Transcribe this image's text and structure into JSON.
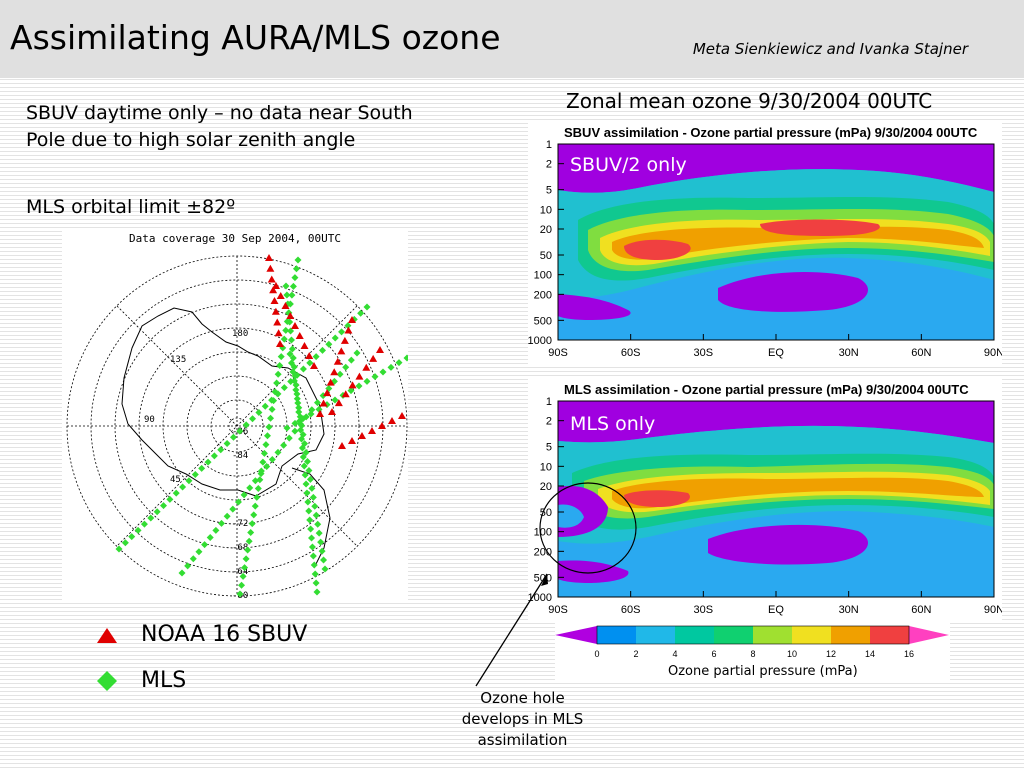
{
  "header": {
    "title": "Assimilating AURA/MLS ozone",
    "authors": "Meta Sienkiewicz and Ivanka Stajner"
  },
  "notes": {
    "sbuv_note": "SBUV daytime only – no data near South Pole due to high solar zenith angle",
    "mls_note": "MLS orbital limit ±82º"
  },
  "coverage_map": {
    "title": "Data coverage 30 Sep 2004, 00UTC",
    "lon_labels": [
      "180",
      "135",
      "90",
      "45"
    ],
    "lat_labels": [
      "-86",
      "-84",
      "-72",
      "-68",
      "-64",
      "-80"
    ]
  },
  "legend": {
    "sbuv_label": "NOAA 16 SBUV",
    "mls_label": "MLS",
    "sbuv_color": "#e00000",
    "mls_color": "#33dd33"
  },
  "zonal": {
    "heading": "Zonal mean ozone 9/30/2004 00UTC",
    "pressure_ticks": [
      "1",
      "2",
      "5",
      "10",
      "20",
      "50",
      "100",
      "200",
      "500",
      "1000"
    ],
    "lat_ticks": [
      "90S",
      "60S",
      "30S",
      "EQ",
      "30N",
      "60N",
      "90N"
    ],
    "panel_sbuv": {
      "plot_title": "SBUV assimilation - Ozone partial pressure (mPa) 9/30/2004 00UTC",
      "overlay": "SBUV/2 only"
    },
    "panel_mls": {
      "plot_title": "MLS assimilation - Ozone partial pressure (mPa) 9/30/2004 00UTC",
      "overlay": "MLS only"
    }
  },
  "colorbar": {
    "ticks": [
      "0",
      "2",
      "4",
      "6",
      "8",
      "10",
      "12",
      "14",
      "16"
    ],
    "colors": [
      "#b000e0",
      "#0090f0",
      "#20b8e8",
      "#00c8a0",
      "#10d070",
      "#a0e030",
      "#f0e020",
      "#f0a000",
      "#f04040",
      "#ff40c0"
    ],
    "label": "Ozone partial pressure (mPa)"
  },
  "annotation": {
    "text_line1": "Ozone hole",
    "text_line2": "develops in MLS",
    "text_line3": "assimilation"
  }
}
